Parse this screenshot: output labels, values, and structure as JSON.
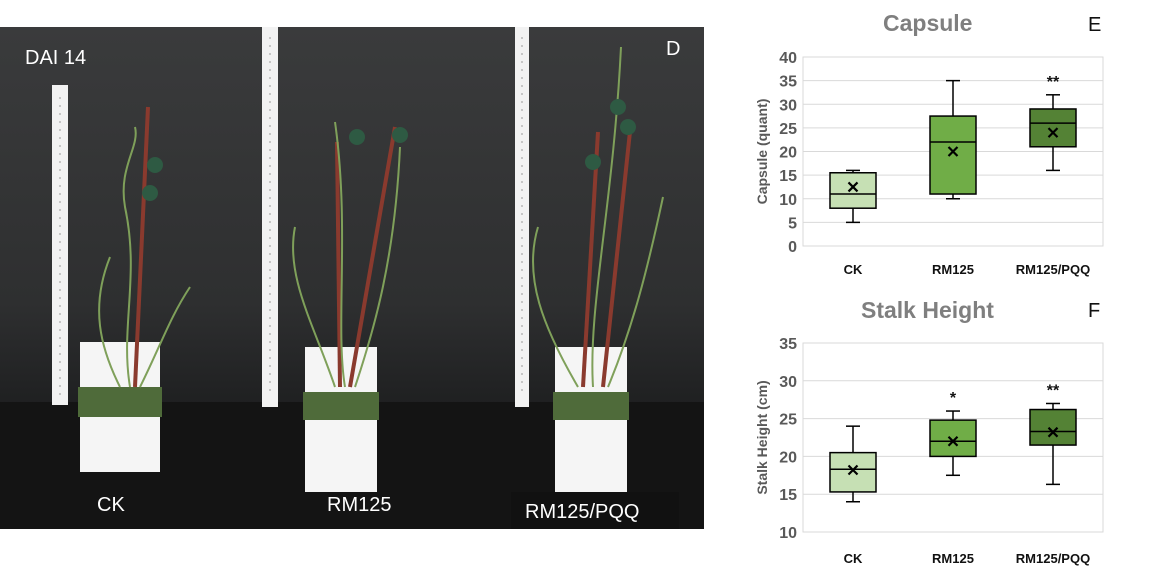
{
  "photos": {
    "panel_label": "D",
    "timepoint": "DAI 14",
    "treatments": [
      "CK",
      "RM125",
      "RM125/PQQ"
    ]
  },
  "colors": {
    "ck": "#c6e0b4",
    "rm125": "#70ad47",
    "rm125_pqq": "#548235",
    "grid": "#d9d9d9",
    "axis_text": "#595959"
  },
  "chart_data": [
    {
      "type": "box",
      "panel_label": "E",
      "title": "Capsule",
      "xlabel": "",
      "ylabel": "Capsule (quant)",
      "ylim": [
        0,
        40
      ],
      "yticks": [
        0,
        5,
        10,
        15,
        20,
        25,
        30,
        35,
        40
      ],
      "categories": [
        "CK",
        "RM125",
        "RM125/PQQ"
      ],
      "boxes": [
        {
          "min": 5,
          "q1": 8,
          "median": 11,
          "q3": 15.5,
          "max": 16,
          "mean": 12.5,
          "significance": ""
        },
        {
          "min": 10,
          "q1": 11,
          "median": 22,
          "q3": 27.5,
          "max": 35,
          "mean": 20,
          "significance": ""
        },
        {
          "min": 16,
          "q1": 21,
          "median": 26,
          "q3": 29,
          "max": 32,
          "mean": 24,
          "significance": "**"
        }
      ],
      "grid": true
    },
    {
      "type": "box",
      "panel_label": "F",
      "title": "Stalk Height",
      "xlabel": "",
      "ylabel": "Stalk Height (cm)",
      "ylim": [
        10,
        35
      ],
      "yticks": [
        10,
        15,
        20,
        25,
        30,
        35
      ],
      "categories": [
        "CK",
        "RM125",
        "RM125/PQQ"
      ],
      "boxes": [
        {
          "min": 14,
          "q1": 15.3,
          "median": 18.3,
          "q3": 20.5,
          "max": 24,
          "mean": 18.2,
          "significance": ""
        },
        {
          "min": 17.5,
          "q1": 20,
          "median": 22,
          "q3": 24.8,
          "max": 26,
          "mean": 22,
          "significance": "*"
        },
        {
          "min": 16.3,
          "q1": 21.5,
          "median": 23.3,
          "q3": 26.2,
          "max": 27,
          "mean": 23.2,
          "significance": "**"
        }
      ],
      "grid": true
    }
  ]
}
